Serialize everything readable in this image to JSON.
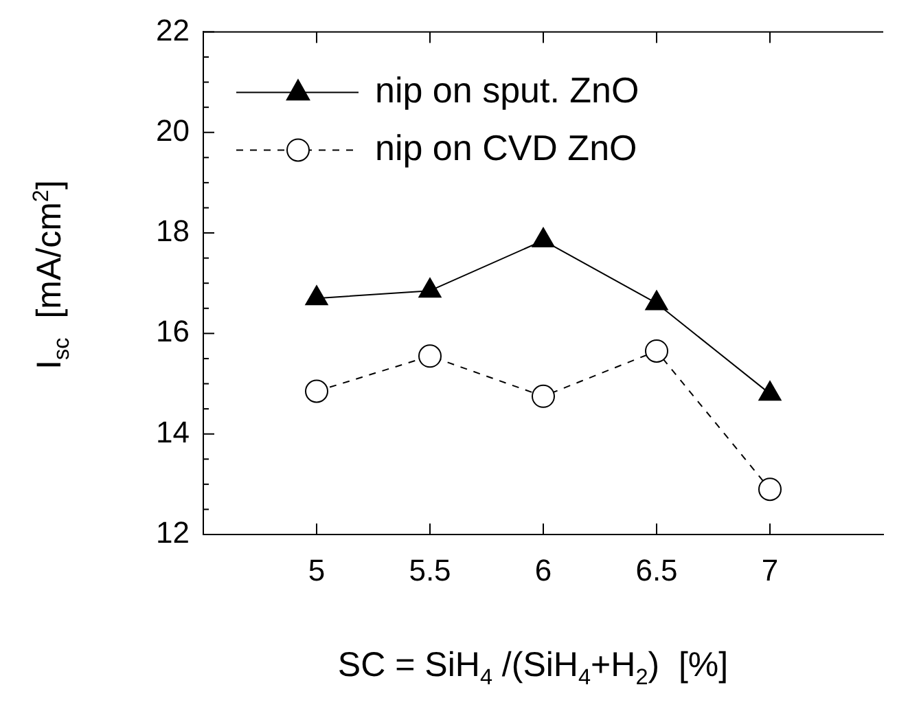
{
  "chart_data": {
    "type": "line",
    "xlabel": "SC = SiH$_{4}$ /(SiH$_{4}$+H$_{2}$)  [%]",
    "ylabel": "I$_{sc}$  [mA/cm$^{2}$]",
    "x": [
      5,
      5.5,
      6,
      6.5,
      7
    ],
    "xlim": [
      4.5,
      7.5
    ],
    "xticks": [
      5,
      5.5,
      6,
      6.5,
      7
    ],
    "ylim": [
      12,
      22
    ],
    "yticks": [
      12,
      {
        "value": 12.5,
        "label": null
      },
      {
        "value": 13,
        "label": null
      },
      {
        "value": 13.5,
        "label": null
      },
      14,
      {
        "value": 14.5,
        "label": null
      },
      {
        "value": 15,
        "label": null
      },
      {
        "value": 15.5,
        "label": null
      },
      16,
      {
        "value": 16.5,
        "label": null
      },
      {
        "value": 17,
        "label": null
      },
      {
        "value": 17.5,
        "label": null
      },
      18,
      {
        "value": 18.5,
        "label": null
      },
      {
        "value": 19,
        "label": null
      },
      {
        "value": 19.5,
        "label": null
      },
      20,
      {
        "value": 20.5,
        "label": null
      },
      {
        "value": 21,
        "label": null
      },
      {
        "value": 21.5,
        "label": null
      },
      22
    ],
    "legend": "top left",
    "series": [
      {
        "name": "nip on sput. ZnO",
        "color": "#000000",
        "marker": "triangle",
        "line_style": "solid",
        "values": [
          16.7,
          16.85,
          17.85,
          16.6,
          14.8
        ]
      },
      {
        "name": "nip on CVD ZnO",
        "color": "#000000",
        "marker": "circle",
        "line_style": "dashed",
        "values": [
          14.85,
          15.55,
          14.75,
          15.65,
          12.9
        ]
      }
    ]
  }
}
